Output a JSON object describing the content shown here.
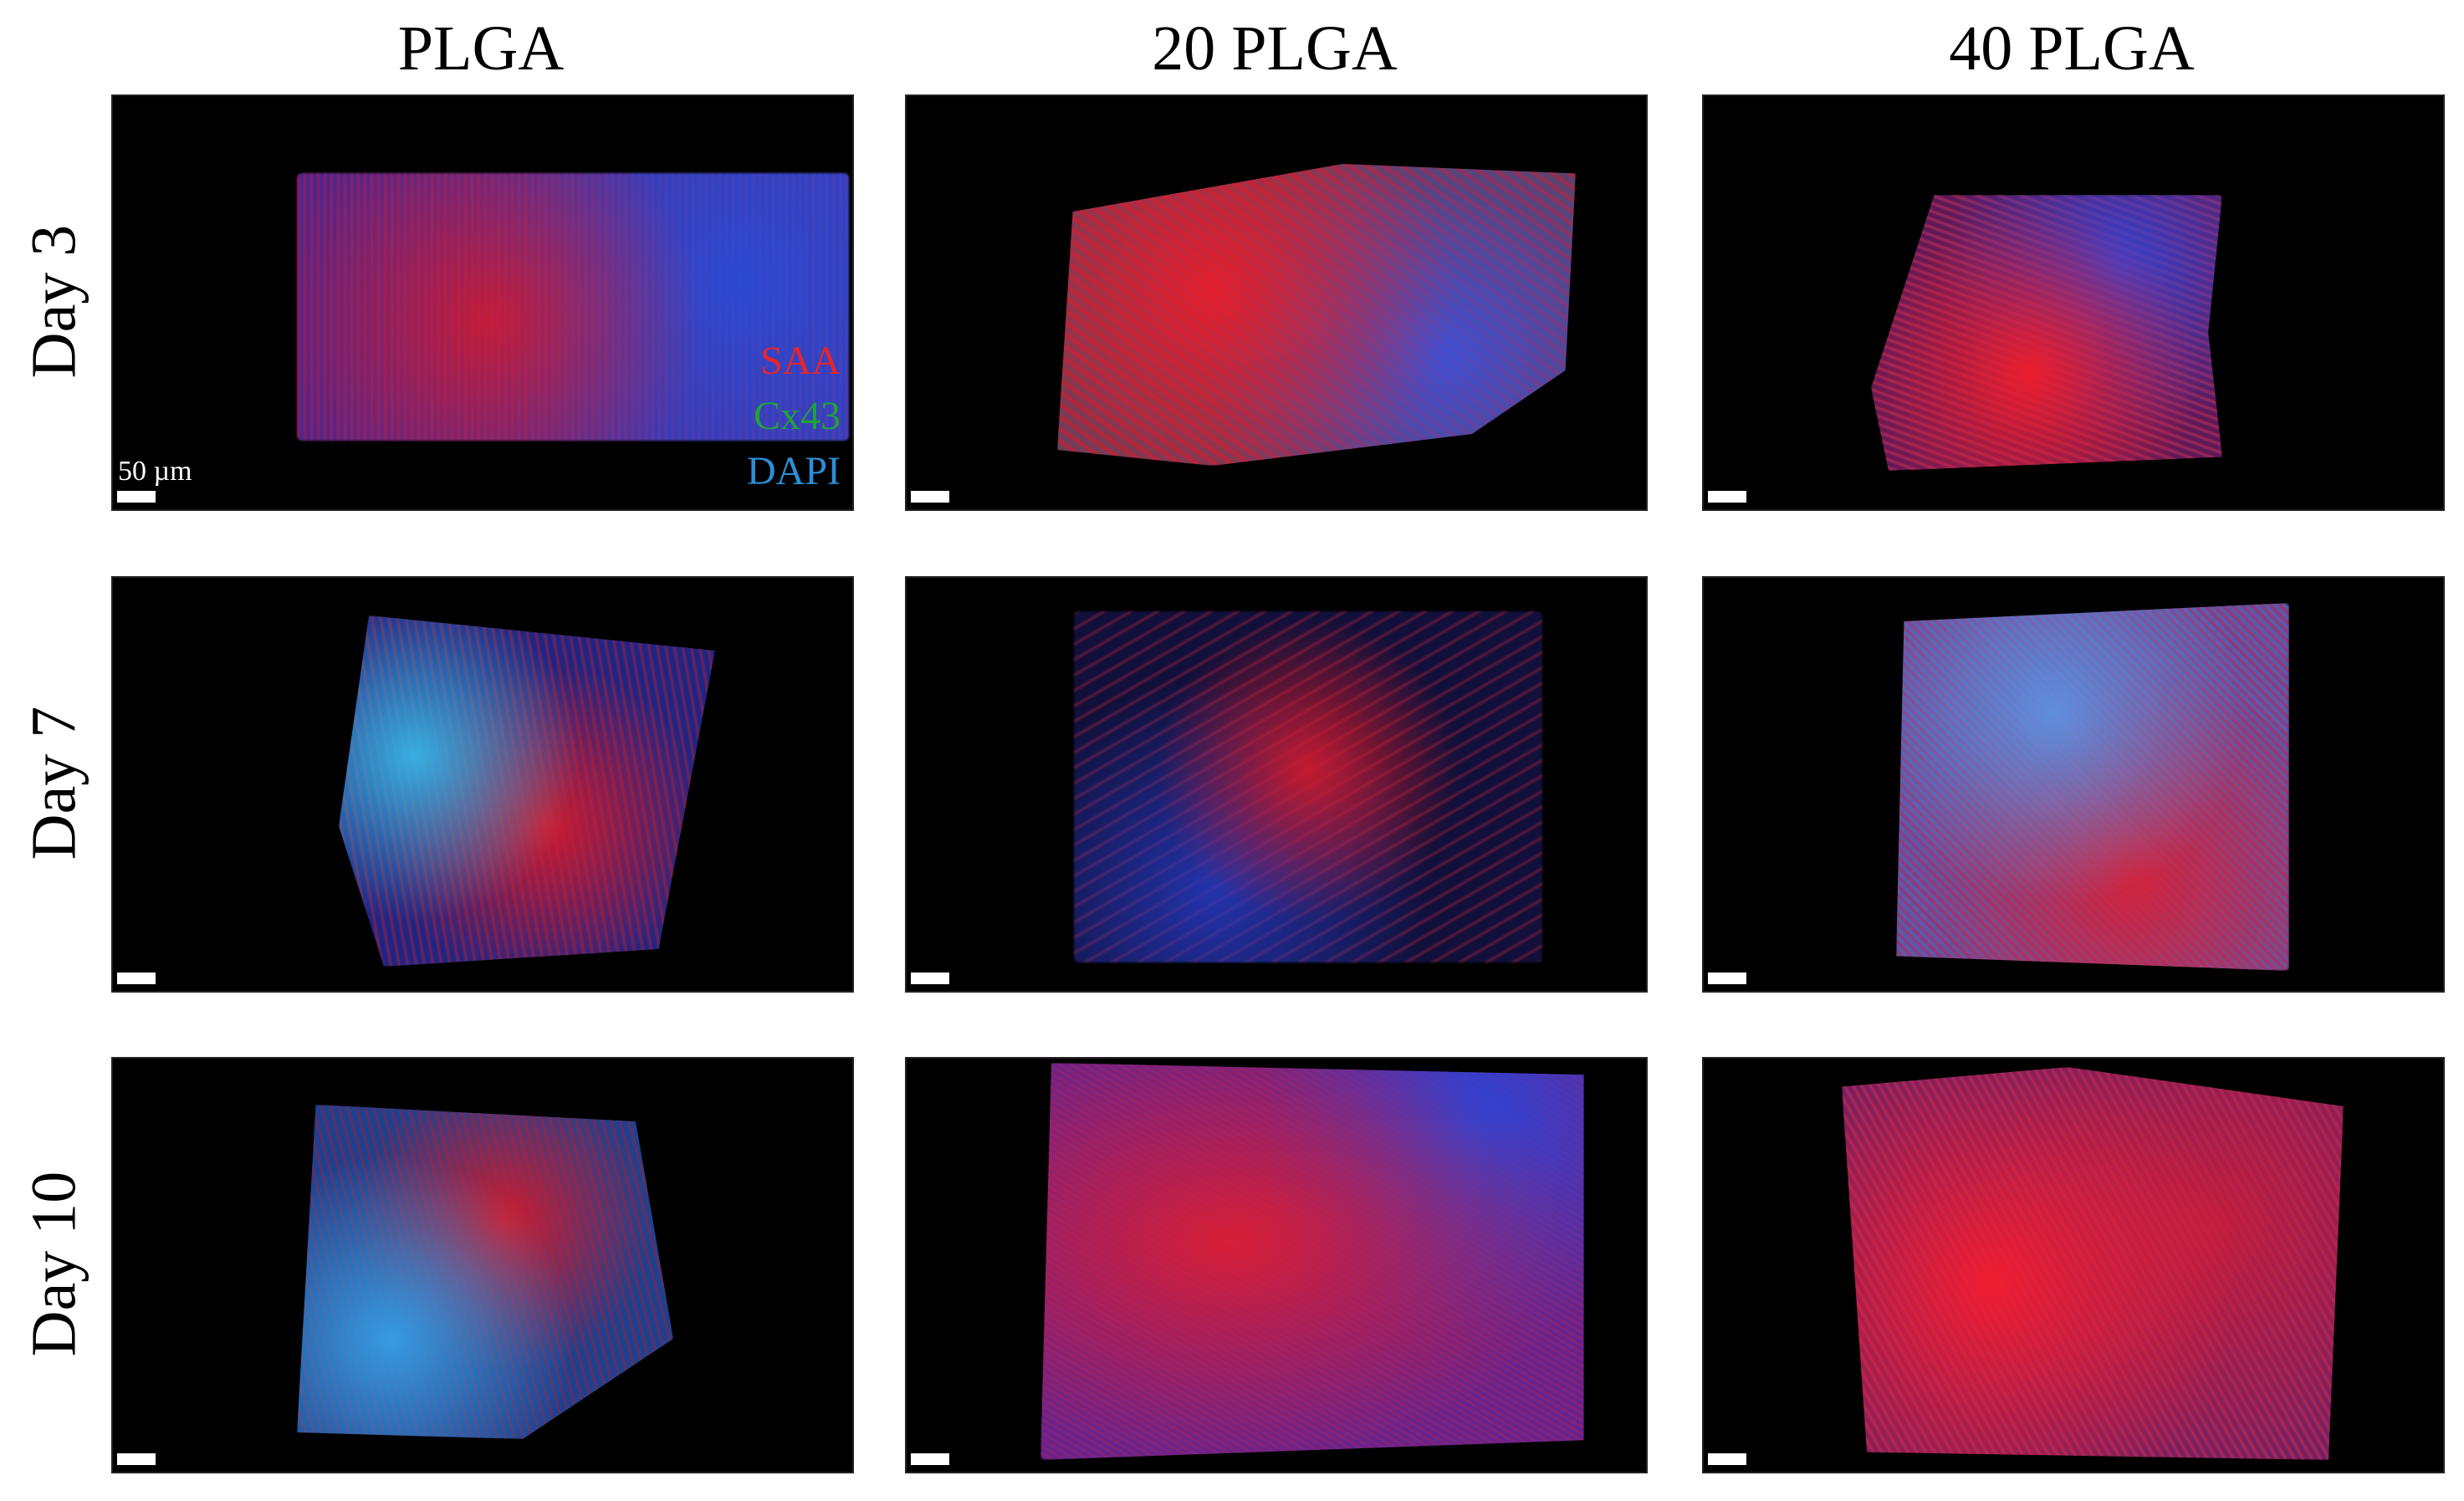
{
  "columns": [
    "PLGA",
    "20 PLGA",
    "40 PLGA"
  ],
  "rows": [
    "Day 3",
    "Day 7",
    "Day 10"
  ],
  "legend": [
    {
      "label": "SAA",
      "color": "#e8242a"
    },
    {
      "label": "Cx43",
      "color": "#1fa33a"
    },
    {
      "label": "DAPI",
      "color": "#2a8fd8"
    }
  ],
  "scale_label": "50 µm",
  "colors": {
    "panel_bg": "#000000",
    "red": "#d61a2a",
    "blue": "#2a4cd6",
    "cyan": "#37b6e6"
  }
}
